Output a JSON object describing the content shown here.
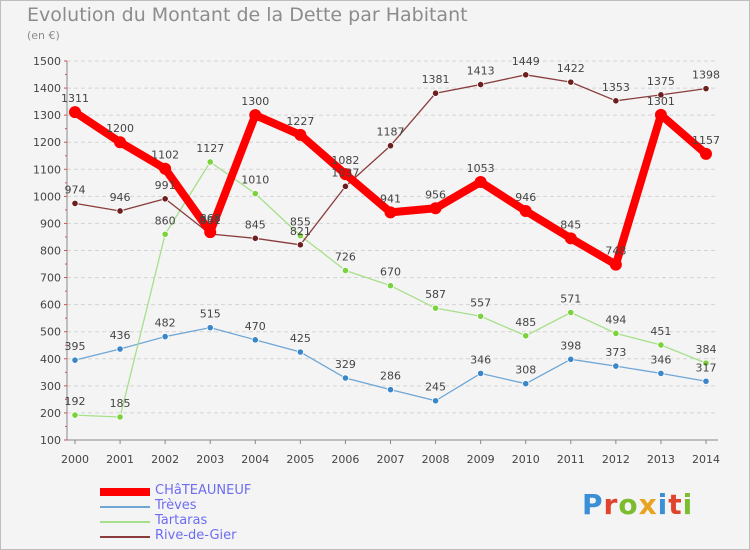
{
  "title": "Evolution du Montant de la Dette par Habitant",
  "unit": "(en €)",
  "brand": {
    "text": "Proxiti",
    "letter_colors": [
      "#3b8fd6",
      "#e0442f",
      "#7bbd2e",
      "#e8a321",
      "#3b8fd6",
      "#e0442f",
      "#7bbd2e"
    ]
  },
  "chart_data": {
    "type": "line",
    "title": "Evolution du Montant de la Dette par Habitant",
    "subtitle": "(en €)",
    "xlabel": "",
    "ylabel": "",
    "x": [
      "2000",
      "2001",
      "2002",
      "2003",
      "2004",
      "2005",
      "2006",
      "2007",
      "2008",
      "2009",
      "2010",
      "2011",
      "2012",
      "2013",
      "2014"
    ],
    "ylim": [
      100,
      1500
    ],
    "yticks": [
      100,
      200,
      300,
      400,
      500,
      600,
      700,
      800,
      900,
      1000,
      1100,
      1200,
      1300,
      1400,
      1500
    ],
    "grid": "horizontal",
    "legend": "bottom-left",
    "series": [
      {
        "name": "CHâTEAUNEUF",
        "color": "#ff0000",
        "emphasis": true,
        "values": [
          1311,
          1200,
          1102,
          868,
          1300,
          1227,
          1082,
          941,
          956,
          1053,
          946,
          845,
          748,
          1301,
          1157
        ],
        "labels": [
          "1311",
          "1200",
          "1102",
          "868",
          "1300",
          "1227",
          "1082",
          "941",
          "956",
          "1053",
          "946",
          "845",
          "748",
          "1301",
          "1157"
        ]
      },
      {
        "name": "Trèves",
        "color": "#6ea6d6",
        "marker": "#3a86c8",
        "values": [
          395,
          436,
          482,
          515,
          470,
          425,
          329,
          286,
          245,
          346,
          308,
          398,
          373,
          346,
          317
        ],
        "labels": [
          "395",
          "436",
          "482",
          "515",
          "470",
          "425",
          "329",
          "286",
          "245",
          "346",
          "308",
          "398",
          "373",
          "346",
          "317"
        ]
      },
      {
        "name": "Tartaras",
        "color": "#a6e08a",
        "marker": "#7cd23c",
        "values": [
          192,
          185,
          860,
          1127,
          1010,
          855,
          726,
          670,
          587,
          557,
          485,
          571,
          494,
          451,
          384
        ],
        "labels": [
          "192",
          "185",
          "860",
          "1127",
          "1010",
          "855",
          "726",
          "670",
          "587",
          "557",
          "485",
          "571",
          "494",
          "451",
          "384"
        ]
      },
      {
        "name": "Rive-de-Gier",
        "color": "#8a3c3c",
        "marker": "#6b1f1f",
        "values": [
          974,
          946,
          991,
          861,
          845,
          821,
          1037,
          1187,
          1381,
          1413,
          1449,
          1422,
          1353,
          1375,
          1398
        ],
        "labels": [
          "974",
          "946",
          "991",
          "861",
          "845",
          "821",
          "1037",
          "1187",
          "1381",
          "1413",
          "1449",
          "1422",
          "1353",
          "1375",
          "1398"
        ]
      }
    ]
  }
}
